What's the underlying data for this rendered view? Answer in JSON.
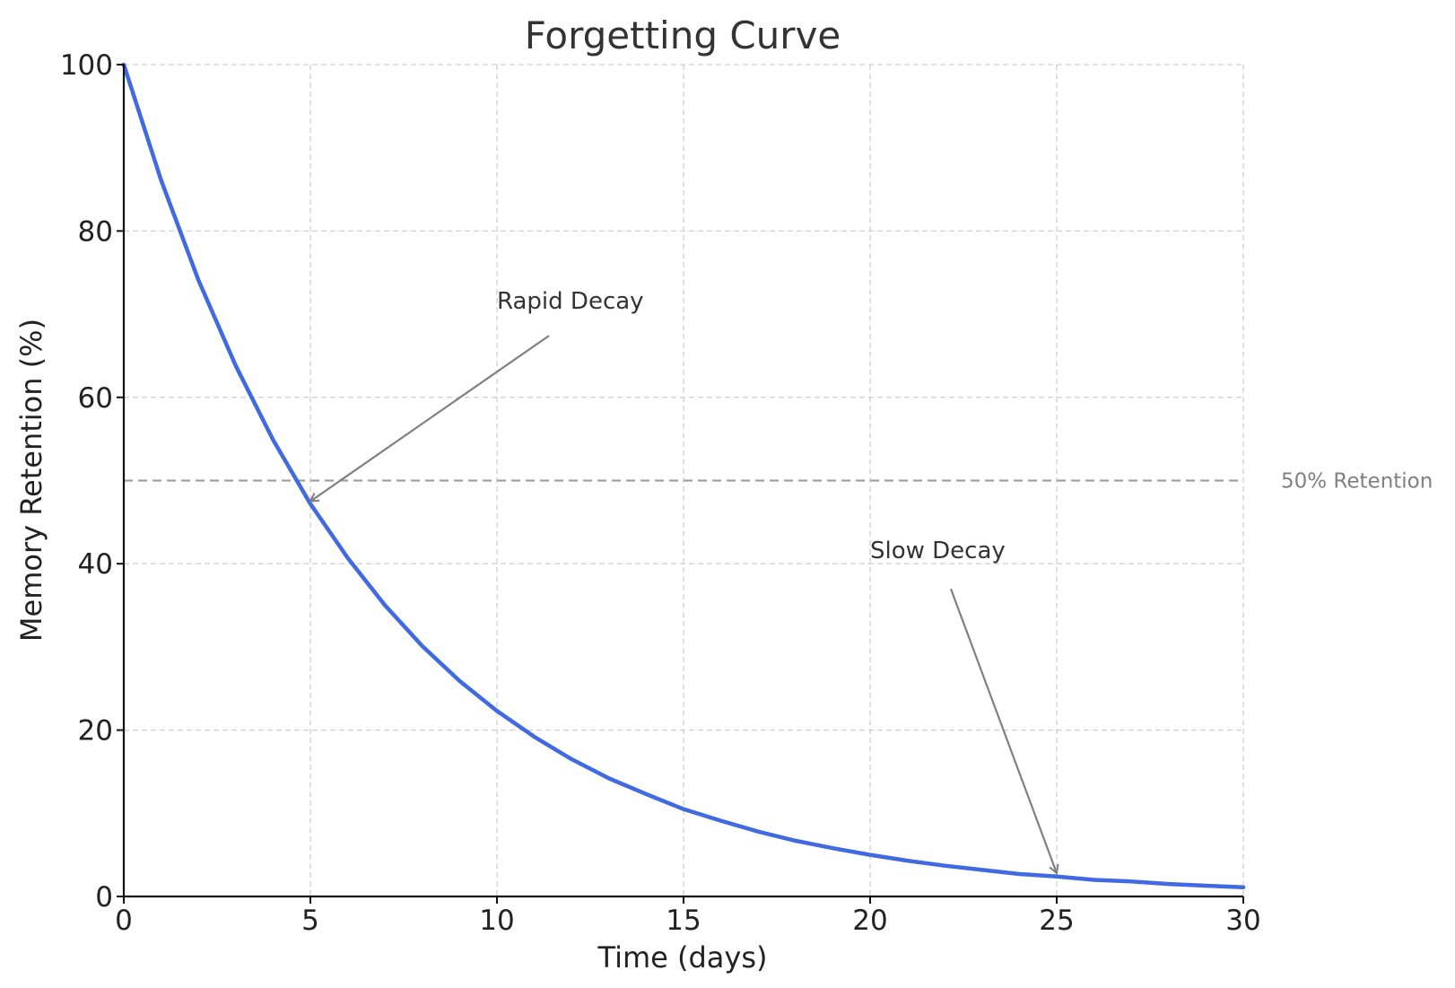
{
  "chart_data": {
    "type": "line",
    "title": "Forgetting Curve",
    "xlabel": "Time (days)",
    "ylabel": "Memory Retention (%)",
    "xlim": [
      0,
      30
    ],
    "ylim": [
      0,
      100
    ],
    "xticks": [
      "0",
      "5",
      "10",
      "15",
      "20",
      "25",
      "30"
    ],
    "yticks": [
      "0",
      "20",
      "40",
      "60",
      "80",
      "100"
    ],
    "grid": true,
    "series": [
      {
        "color": "#4169e1",
        "x": [
          0,
          1,
          2,
          3,
          4,
          5,
          6,
          7,
          8,
          9,
          10,
          11,
          12,
          13,
          14,
          15,
          16,
          17,
          18,
          19,
          20,
          21,
          22,
          23,
          24,
          25,
          26,
          27,
          28,
          29,
          30
        ],
        "y": [
          100,
          86.1,
          74.1,
          63.8,
          54.9,
          47.2,
          40.7,
          35.0,
          30.1,
          25.9,
          22.3,
          19.2,
          16.5,
          14.2,
          12.3,
          10.5,
          9.1,
          7.8,
          6.7,
          5.8,
          5.0,
          4.3,
          3.7,
          3.2,
          2.7,
          2.4,
          2.0,
          1.8,
          1.5,
          1.3,
          1.1
        ]
      }
    ],
    "reference_line": {
      "y": 50,
      "label": "50% Retention",
      "color": "#a0a0a0"
    },
    "annotations": [
      {
        "text": "Rapid Decay",
        "text_x": 10,
        "text_y": 70,
        "point_x": 5,
        "point_y": 47.5
      },
      {
        "text": "Slow Decay",
        "text_x": 20,
        "text_y": 40,
        "point_x": 25,
        "point_y": 2.8
      }
    ]
  }
}
